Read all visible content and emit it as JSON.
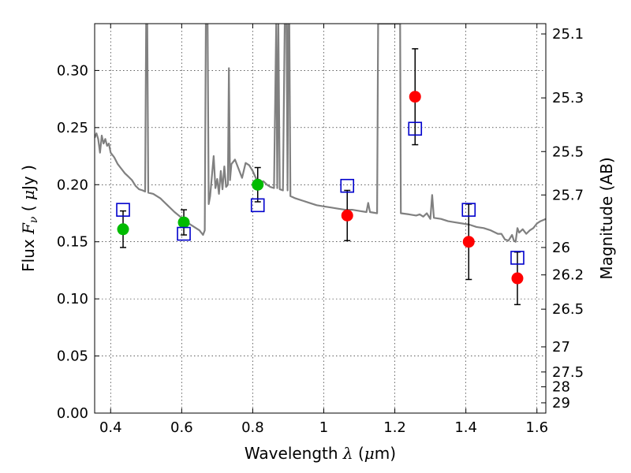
{
  "chart_data": {
    "type": "scatter",
    "title": "",
    "xlabel": "Wavelength  λ (μm)",
    "ylabel_left": "Flux  F_ν  ( μJy )",
    "ylabel_right": "Magnitude (AB)",
    "xlim": [
      0.355,
      1.625
    ],
    "ylim": [
      0.0,
      0.341
    ],
    "x_ticks": [
      0.4,
      0.6,
      0.8,
      1.0,
      1.2,
      1.4,
      1.6
    ],
    "x_tick_labels": [
      "0.4",
      "0.6",
      "0.8",
      "1",
      "1.2",
      "1.4",
      "1.6"
    ],
    "y_ticks": [
      0.0,
      0.05,
      0.1,
      0.15,
      0.2,
      0.25,
      0.3
    ],
    "y_tick_labels": [
      "0.00",
      "0.05",
      "0.10",
      "0.15",
      "0.20",
      "0.25",
      "0.30"
    ],
    "right_ticks": [
      {
        "label": "25.1",
        "flux": 0.332
      },
      {
        "label": "25.3",
        "flux": 0.276
      },
      {
        "label": "25.5",
        "flux": 0.229
      },
      {
        "label": "25.7",
        "flux": 0.191
      },
      {
        "label": "26",
        "flux": 0.145
      },
      {
        "label": "26.2",
        "flux": 0.121
      },
      {
        "label": "26.5",
        "flux": 0.091
      },
      {
        "label": "27",
        "flux": 0.058
      },
      {
        "label": "27.5",
        "flux": 0.036
      },
      {
        "label": "28",
        "flux": 0.023
      },
      {
        "label": "29",
        "flux": 0.009
      }
    ],
    "grid": true,
    "series": [
      {
        "marker": "circle",
        "color": "#00bb00",
        "points": [
          {
            "x": 0.435,
            "y": 0.161,
            "err": 0.016
          },
          {
            "x": 0.606,
            "y": 0.167,
            "err": 0.011
          },
          {
            "x": 0.814,
            "y": 0.2,
            "err": 0.015
          }
        ]
      },
      {
        "marker": "circle",
        "color": "#ff0000",
        "points": [
          {
            "x": 1.066,
            "y": 0.173,
            "err": 0.022
          },
          {
            "x": 1.257,
            "y": 0.277,
            "err": 0.042
          },
          {
            "x": 1.408,
            "y": 0.15,
            "err": 0.033
          },
          {
            "x": 1.545,
            "y": 0.118,
            "err": 0.023
          }
        ]
      },
      {
        "marker": "open-square",
        "color": "#0000cc",
        "points": [
          {
            "x": 0.435,
            "y": 0.178
          },
          {
            "x": 0.606,
            "y": 0.157
          },
          {
            "x": 0.814,
            "y": 0.182
          },
          {
            "x": 1.066,
            "y": 0.199
          },
          {
            "x": 1.257,
            "y": 0.249
          },
          {
            "x": 1.408,
            "y": 0.178
          },
          {
            "x": 1.545,
            "y": 0.136
          }
        ]
      }
    ],
    "model_spectrum": {
      "color": "#808080",
      "points": [
        [
          0.355,
          0.241
        ],
        [
          0.36,
          0.245
        ],
        [
          0.365,
          0.24
        ],
        [
          0.37,
          0.228
        ],
        [
          0.375,
          0.243
        ],
        [
          0.38,
          0.236
        ],
        [
          0.385,
          0.24
        ],
        [
          0.39,
          0.234
        ],
        [
          0.395,
          0.236
        ],
        [
          0.4,
          0.228
        ],
        [
          0.41,
          0.224
        ],
        [
          0.42,
          0.218
        ],
        [
          0.43,
          0.214
        ],
        [
          0.44,
          0.21
        ],
        [
          0.45,
          0.207
        ],
        [
          0.46,
          0.204
        ],
        [
          0.47,
          0.199
        ],
        [
          0.48,
          0.196
        ],
        [
          0.49,
          0.195
        ],
        [
          0.497,
          0.194
        ],
        [
          0.5,
          0.341
        ],
        [
          0.503,
          0.341
        ],
        [
          0.506,
          0.193
        ],
        [
          0.52,
          0.192
        ],
        [
          0.54,
          0.188
        ],
        [
          0.56,
          0.182
        ],
        [
          0.58,
          0.176
        ],
        [
          0.6,
          0.171
        ],
        [
          0.62,
          0.166
        ],
        [
          0.63,
          0.164
        ],
        [
          0.64,
          0.162
        ],
        [
          0.65,
          0.16
        ],
        [
          0.66,
          0.156
        ],
        [
          0.665,
          0.16
        ],
        [
          0.668,
          0.341
        ],
        [
          0.673,
          0.341
        ],
        [
          0.676,
          0.183
        ],
        [
          0.68,
          0.19
        ],
        [
          0.69,
          0.225
        ],
        [
          0.695,
          0.197
        ],
        [
          0.7,
          0.205
        ],
        [
          0.705,
          0.192
        ],
        [
          0.71,
          0.212
        ],
        [
          0.715,
          0.196
        ],
        [
          0.72,
          0.216
        ],
        [
          0.725,
          0.198
        ],
        [
          0.73,
          0.2
        ],
        [
          0.733,
          0.302
        ],
        [
          0.736,
          0.204
        ],
        [
          0.74,
          0.218
        ],
        [
          0.75,
          0.222
        ],
        [
          0.76,
          0.214
        ],
        [
          0.77,
          0.206
        ],
        [
          0.78,
          0.219
        ],
        [
          0.79,
          0.217
        ],
        [
          0.8,
          0.212
        ],
        [
          0.81,
          0.205
        ],
        [
          0.82,
          0.202
        ],
        [
          0.83,
          0.203
        ],
        [
          0.84,
          0.2
        ],
        [
          0.85,
          0.198
        ],
        [
          0.86,
          0.197
        ],
        [
          0.866,
          0.341
        ],
        [
          0.869,
          0.197
        ],
        [
          0.872,
          0.341
        ],
        [
          0.876,
          0.196
        ],
        [
          0.885,
          0.195
        ],
        [
          0.89,
          0.341
        ],
        [
          0.895,
          0.341
        ],
        [
          0.898,
          0.195
        ],
        [
          0.9,
          0.341
        ],
        [
          0.903,
          0.341
        ],
        [
          0.906,
          0.19
        ],
        [
          0.92,
          0.188
        ],
        [
          0.94,
          0.186
        ],
        [
          0.96,
          0.184
        ],
        [
          0.98,
          0.182
        ],
        [
          1.0,
          0.181
        ],
        [
          1.02,
          0.18
        ],
        [
          1.04,
          0.179
        ],
        [
          1.06,
          0.178
        ],
        [
          1.08,
          0.178
        ],
        [
          1.1,
          0.177
        ],
        [
          1.12,
          0.176
        ],
        [
          1.125,
          0.184
        ],
        [
          1.13,
          0.176
        ],
        [
          1.15,
          0.175
        ],
        [
          1.153,
          0.341
        ],
        [
          1.215,
          0.341
        ],
        [
          1.217,
          0.175
        ],
        [
          1.24,
          0.174
        ],
        [
          1.26,
          0.173
        ],
        [
          1.27,
          0.174
        ],
        [
          1.28,
          0.172
        ],
        [
          1.29,
          0.175
        ],
        [
          1.3,
          0.17
        ],
        [
          1.305,
          0.191
        ],
        [
          1.31,
          0.171
        ],
        [
          1.33,
          0.17
        ],
        [
          1.35,
          0.168
        ],
        [
          1.37,
          0.167
        ],
        [
          1.39,
          0.166
        ],
        [
          1.41,
          0.165
        ],
        [
          1.43,
          0.163
        ],
        [
          1.45,
          0.162
        ],
        [
          1.47,
          0.16
        ],
        [
          1.49,
          0.157
        ],
        [
          1.5,
          0.157
        ],
        [
          1.51,
          0.152
        ],
        [
          1.52,
          0.151
        ],
        [
          1.53,
          0.156
        ],
        [
          1.535,
          0.151
        ],
        [
          1.54,
          0.15
        ],
        [
          1.545,
          0.162
        ],
        [
          1.55,
          0.158
        ],
        [
          1.56,
          0.161
        ],
        [
          1.57,
          0.157
        ],
        [
          1.58,
          0.16
        ],
        [
          1.59,
          0.162
        ],
        [
          1.6,
          0.166
        ],
        [
          1.61,
          0.168
        ],
        [
          1.625,
          0.17
        ]
      ]
    }
  }
}
